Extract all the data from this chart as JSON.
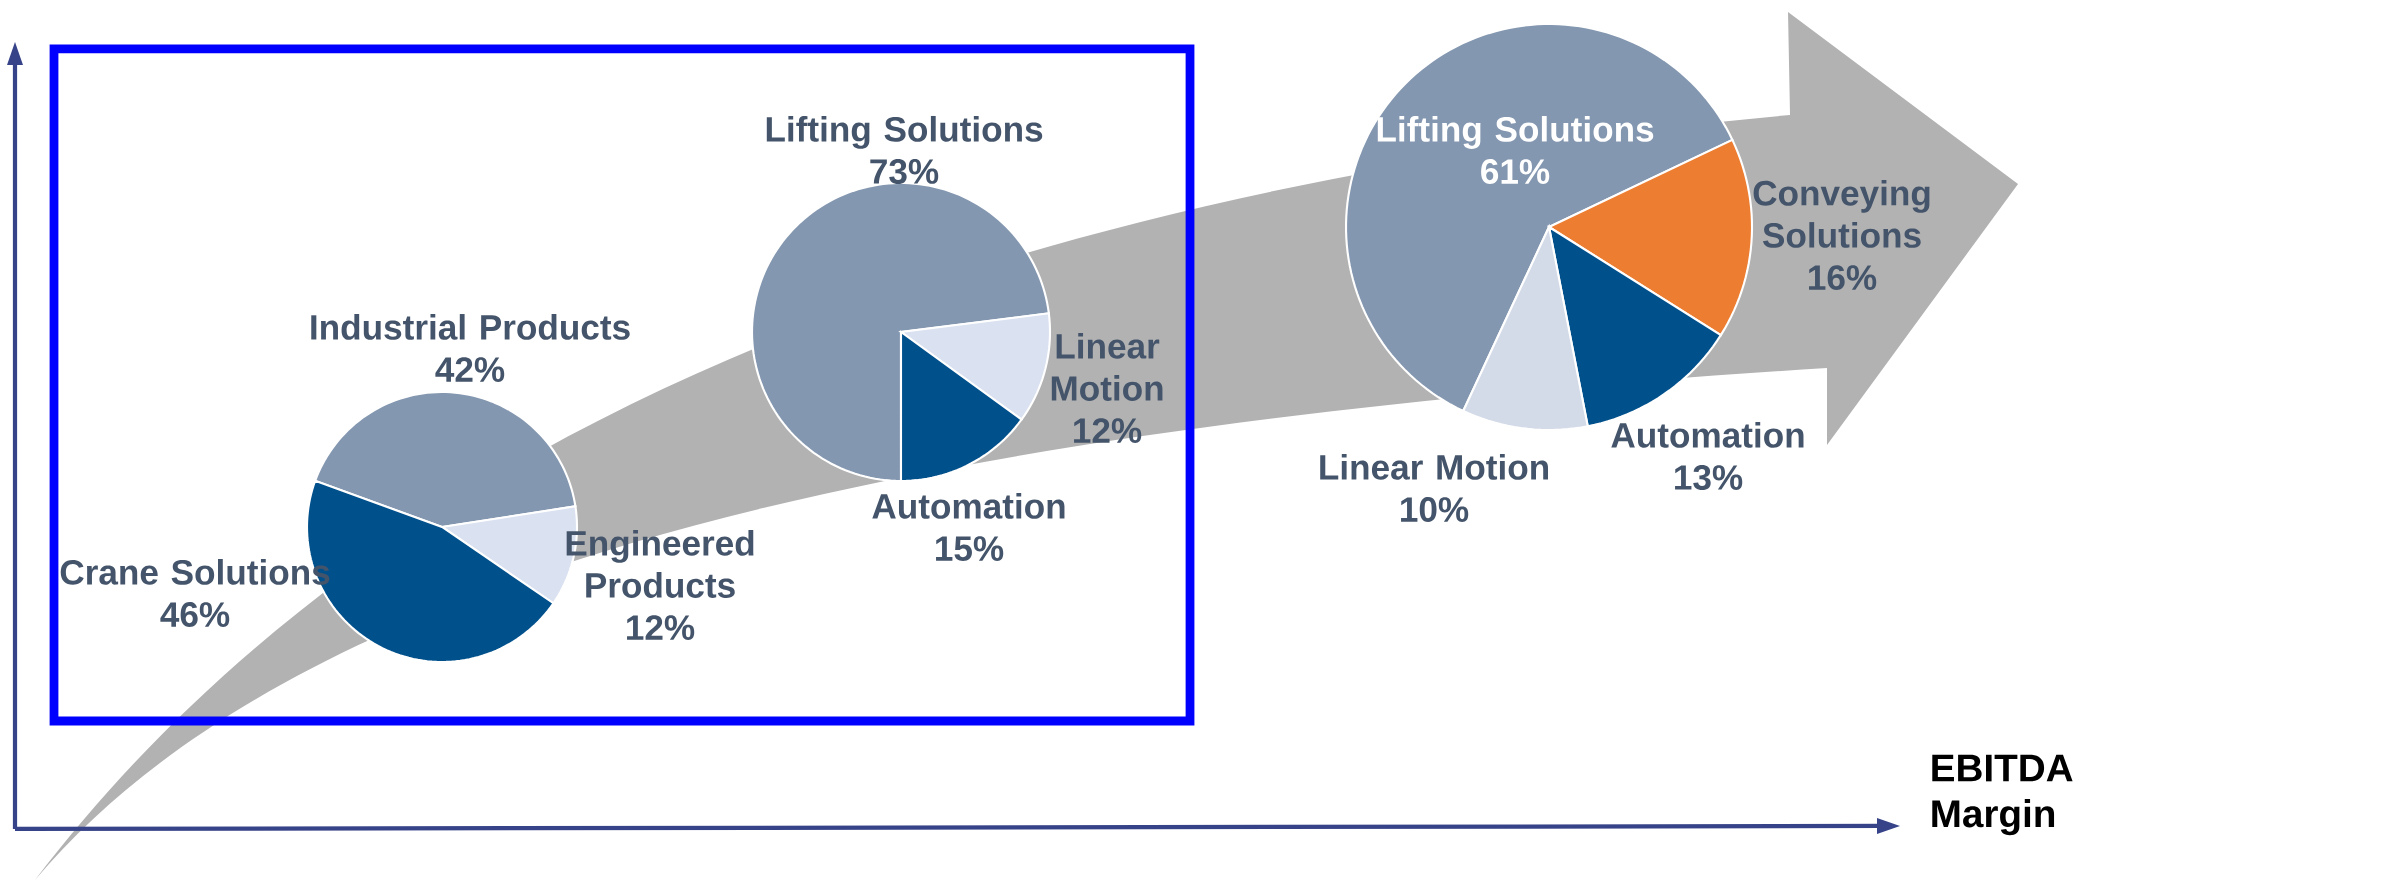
{
  "chart_data": [
    {
      "type": "pie",
      "categories": [
        "Industrial Products",
        "Engineered Products",
        "Crane Solutions"
      ],
      "values": [
        42,
        12,
        46
      ],
      "colors": [
        "#8497b0",
        "#dae1f0",
        "#00508c"
      ],
      "value_labels": [
        "42%",
        "12%",
        "46%"
      ],
      "legend": false
    },
    {
      "type": "pie",
      "categories": [
        "Lifting Solutions",
        "Linear Motion",
        "Automation"
      ],
      "values": [
        73,
        12,
        15
      ],
      "colors": [
        "#8497b0",
        "#dae1f0",
        "#00508c"
      ],
      "value_labels": [
        "73%",
        "12%",
        "15%"
      ],
      "legend": false
    },
    {
      "type": "pie",
      "categories": [
        "Lifting Solutions",
        "Conveying Solutions",
        "Automation",
        "Linear Motion"
      ],
      "values": [
        61,
        16,
        13,
        10
      ],
      "colors": [
        "#8497b0",
        "#ed7d31",
        "#00508c",
        "#d3dae8"
      ],
      "value_labels": [
        "61%",
        "16%",
        "13%",
        "10%"
      ],
      "legend": false,
      "annotations": [
        "EBITDA Margin"
      ]
    }
  ]
}
